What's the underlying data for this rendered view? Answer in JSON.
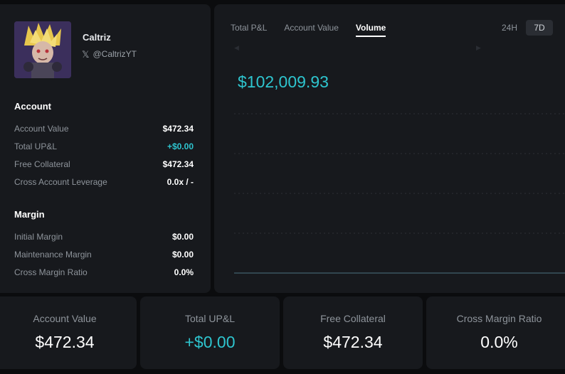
{
  "profile": {
    "name": "Caltriz",
    "handle": "@CaltrizYT"
  },
  "account": {
    "title": "Account",
    "rows": [
      {
        "label": "Account Value",
        "value": "$472.34"
      },
      {
        "label": "Total UP&L",
        "value": "+$0.00"
      },
      {
        "label": "Free Collateral",
        "value": "$472.34"
      },
      {
        "label": "Cross Account Leverage",
        "value": "0.0x / -"
      }
    ]
  },
  "margin": {
    "title": "Margin",
    "rows": [
      {
        "label": "Initial Margin",
        "value": "$0.00"
      },
      {
        "label": "Maintenance Margin",
        "value": "$0.00"
      },
      {
        "label": "Cross Margin Ratio",
        "value": "0.0%"
      }
    ]
  },
  "chart": {
    "tabs": [
      "Total P&L",
      "Account Value",
      "Volume"
    ],
    "active_tab": "Volume",
    "ranges": [
      "24H",
      "7D"
    ],
    "active_range": "7D",
    "value": "$102,009.93",
    "accent_color": "#2ec5cf"
  },
  "chart_data": {
    "type": "line",
    "title": "",
    "xlabel": "",
    "ylabel": "",
    "series": [
      {
        "values": [
          0,
          0,
          0,
          0,
          0,
          0,
          0,
          0
        ]
      }
    ],
    "grid": true
  },
  "cards": [
    {
      "label": "Account Value",
      "value": "$472.34"
    },
    {
      "label": "Total UP&L",
      "value": "+$0.00"
    },
    {
      "label": "Free Collateral",
      "value": "$472.34"
    },
    {
      "label": "Cross Margin Ratio",
      "value": "0.0%"
    }
  ]
}
